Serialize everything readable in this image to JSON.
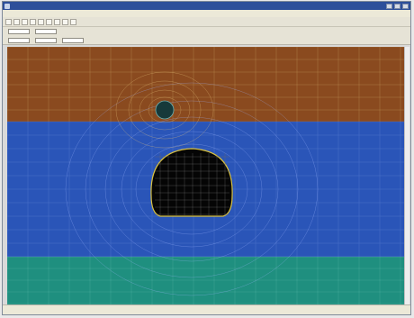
{
  "window": {
    "title": "",
    "controls": [
      "minimize-button",
      "maximize-button",
      "close-button"
    ]
  },
  "menubar": {
    "items": [
      "",
      "",
      "",
      "",
      "",
      "",
      "",
      "",
      ""
    ]
  },
  "toolbar": {
    "buttons": [
      "",
      "",
      "",
      "",
      "",
      "",
      "",
      "",
      ""
    ]
  },
  "toolbar2": {
    "labels": [
      "",
      ""
    ]
  },
  "toolbar3": {
    "labels": [
      "",
      "",
      ""
    ]
  },
  "statusbar": {
    "items": [
      "",
      "",
      "",
      ""
    ]
  },
  "colors": {
    "top_layer": "#8a4a1f",
    "middle_layer": "#2a55b8",
    "bottom_layer": "#1f8f7f",
    "mesh_line_top": "#c8a060",
    "mesh_line_mid": "#6e8fe0",
    "cavity_fill": "#050505",
    "cavity_outline": "#d8c040",
    "small_hole": "#16393a"
  }
}
